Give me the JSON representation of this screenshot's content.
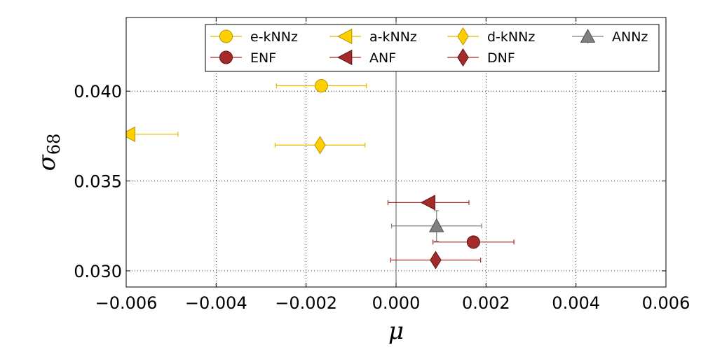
{
  "chart_data": {
    "type": "scatter",
    "title": "",
    "xlabel": "μ",
    "ylabel_main": "σ",
    "ylabel_sub": "68",
    "xlim": [
      -0.006,
      0.006
    ],
    "ylim": [
      0.0291,
      0.0441
    ],
    "xticks": [
      -0.006,
      -0.004,
      -0.002,
      0.0,
      0.002,
      0.004,
      0.006
    ],
    "xtick_labels": [
      "−0.006",
      "−0.004",
      "−0.002",
      "0.000",
      "0.002",
      "0.004",
      "0.006"
    ],
    "yticks": [
      0.03,
      0.035,
      0.04
    ],
    "ytick_labels": [
      "0.030",
      "0.035",
      "0.040"
    ],
    "grid": true,
    "zero_line_x": 0.0,
    "legend_position": "top-right",
    "legend_columns": 4,
    "series": [
      {
        "name": "e-kNNz",
        "marker": "circle",
        "color": "#ffd000",
        "edge": "#b59500",
        "x": -0.00166,
        "y": 0.0403,
        "xerr": 0.001
      },
      {
        "name": "ENF",
        "marker": "circle",
        "color": "#a52a2a",
        "edge": "#5a1414",
        "x": 0.00172,
        "y": 0.0316,
        "xerr": 0.0009
      },
      {
        "name": "a-kNNz",
        "marker": "triangle-left",
        "color": "#ffd000",
        "edge": "#b59500",
        "x": -0.00595,
        "y": 0.0376,
        "xerr": 0.0011
      },
      {
        "name": "ANF",
        "marker": "triangle-left",
        "color": "#a52a2a",
        "edge": "#5a1414",
        "x": 0.00072,
        "y": 0.0338,
        "xerr": 0.0009
      },
      {
        "name": "d-kNNz",
        "marker": "diamond",
        "color": "#ffd000",
        "edge": "#b59500",
        "x": -0.00169,
        "y": 0.037,
        "xerr": 0.001
      },
      {
        "name": "DNF",
        "marker": "diamond",
        "color": "#a52a2a",
        "edge": "#5a1414",
        "x": 0.00088,
        "y": 0.0306,
        "xerr": 0.001
      },
      {
        "name": "ANNz",
        "marker": "triangle-up",
        "color": "#808080",
        "edge": "#505050",
        "x": 0.0009,
        "y": 0.0325,
        "xerr": 0.001,
        "yerr": 0.00085
      }
    ]
  }
}
